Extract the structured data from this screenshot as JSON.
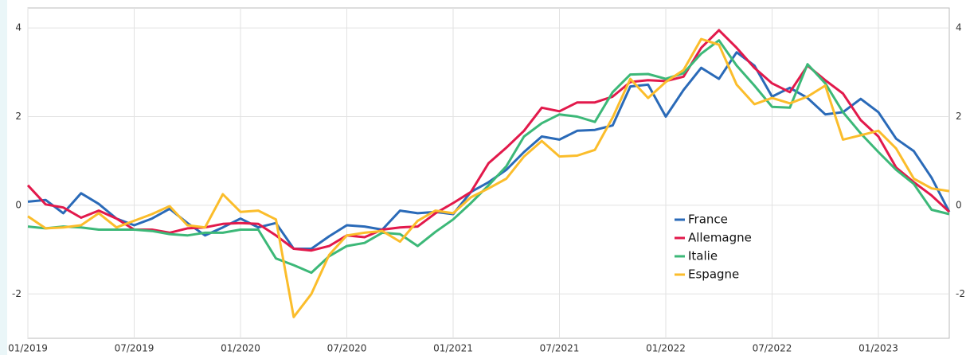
{
  "chart_data": {
    "type": "line",
    "categories": [
      "01/2019",
      null,
      null,
      null,
      null,
      null,
      "07/2019",
      null,
      null,
      null,
      null,
      null,
      "01/2020",
      null,
      null,
      null,
      null,
      null,
      "07/2020",
      null,
      null,
      null,
      null,
      null,
      "01/2021",
      null,
      null,
      null,
      null,
      null,
      "07/2021",
      null,
      null,
      null,
      null,
      null,
      "01/2022",
      null,
      null,
      null,
      null,
      null,
      "07/2022",
      null,
      null,
      null,
      null,
      null,
      "01/2023",
      null,
      null,
      null,
      null
    ],
    "series": [
      {
        "name": "France",
        "color": "#2a6ab8",
        "values": [
          0.08,
          0.12,
          -0.18,
          0.27,
          0.03,
          -0.3,
          -0.45,
          -0.3,
          -0.08,
          -0.4,
          -0.68,
          -0.5,
          -0.3,
          -0.5,
          -0.4,
          -0.98,
          -0.98,
          -0.7,
          -0.45,
          -0.48,
          -0.55,
          -0.12,
          -0.18,
          -0.15,
          -0.2,
          0.3,
          0.52,
          0.8,
          1.2,
          1.55,
          1.48,
          1.68,
          1.7,
          1.8,
          2.68,
          2.72,
          2.0,
          2.6,
          3.1,
          2.85,
          3.45,
          3.15,
          2.45,
          2.65,
          2.42,
          2.05,
          2.1,
          2.4,
          2.1,
          1.5,
          1.22,
          0.62,
          -0.15
        ]
      },
      {
        "name": "Allemagne",
        "color": "#e2194b",
        "values": [
          0.45,
          0.02,
          -0.05,
          -0.28,
          -0.12,
          -0.3,
          -0.55,
          -0.55,
          -0.62,
          -0.52,
          -0.5,
          -0.42,
          -0.4,
          -0.42,
          -0.68,
          -0.98,
          -1.02,
          -0.92,
          -0.68,
          -0.72,
          -0.55,
          -0.5,
          -0.48,
          -0.18,
          0.05,
          0.3,
          0.95,
          1.3,
          1.68,
          2.2,
          2.12,
          2.32,
          2.32,
          2.45,
          2.78,
          2.82,
          2.8,
          2.9,
          3.55,
          3.95,
          3.55,
          3.1,
          2.75,
          2.55,
          3.15,
          2.82,
          2.52,
          1.92,
          1.55,
          0.85,
          0.52,
          0.22,
          -0.15
        ]
      },
      {
        "name": "Italie",
        "color": "#3cb878",
        "values": [
          -0.48,
          -0.52,
          -0.48,
          -0.5,
          -0.55,
          -0.55,
          -0.55,
          -0.58,
          -0.65,
          -0.68,
          -0.62,
          -0.62,
          -0.55,
          -0.55,
          -1.2,
          -1.35,
          -1.52,
          -1.15,
          -0.92,
          -0.85,
          -0.62,
          -0.65,
          -0.92,
          -0.6,
          -0.32,
          0.05,
          0.45,
          0.88,
          1.55,
          1.85,
          2.05,
          2.0,
          1.88,
          2.55,
          2.95,
          2.96,
          2.85,
          2.98,
          3.42,
          3.72,
          3.15,
          2.7,
          2.22,
          2.2,
          3.18,
          2.75,
          2.1,
          1.62,
          1.2,
          0.8,
          0.48,
          -0.1,
          -0.2
        ]
      },
      {
        "name": "Espagne",
        "color": "#fbbd2b",
        "values": [
          -0.25,
          -0.52,
          -0.5,
          -0.45,
          -0.18,
          -0.5,
          -0.35,
          -0.2,
          -0.02,
          -0.45,
          -0.5,
          0.25,
          -0.15,
          -0.12,
          -0.32,
          -2.52,
          -2.0,
          -1.12,
          -0.68,
          -0.62,
          -0.58,
          -0.82,
          -0.35,
          -0.12,
          -0.18,
          0.18,
          0.38,
          0.6,
          1.1,
          1.45,
          1.1,
          1.12,
          1.25,
          1.98,
          2.85,
          2.42,
          2.78,
          3.05,
          3.75,
          3.62,
          2.72,
          2.28,
          2.42,
          2.3,
          2.45,
          2.7,
          1.48,
          1.58,
          1.68,
          1.28,
          0.6,
          0.38,
          0.32
        ]
      }
    ],
    "ylim": [
      -3,
      4.45
    ],
    "yticks": [
      -2,
      0,
      2,
      4
    ],
    "grid": true
  }
}
